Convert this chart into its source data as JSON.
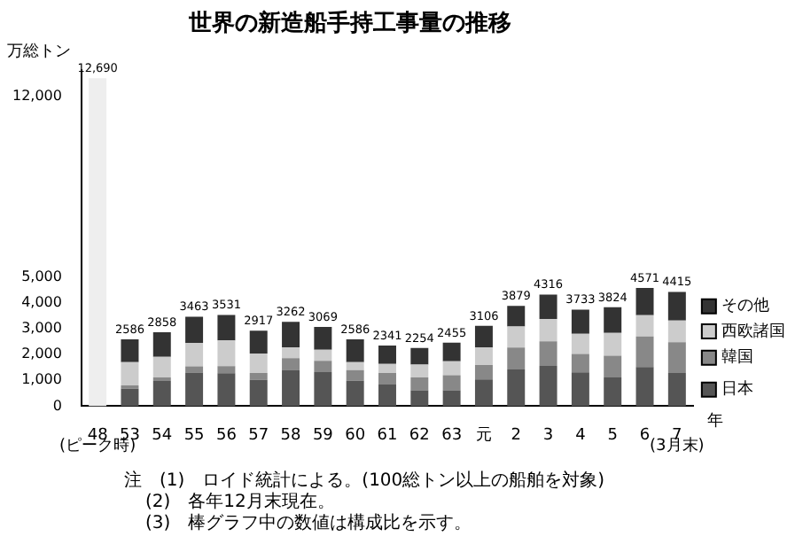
{
  "chart_data": {
    "type": "bar",
    "stacked": true,
    "title": "世界の新造船手持工事量の推移",
    "ylabel": "万総トン",
    "xlabel": "年",
    "categories": [
      "48",
      "53",
      "54",
      "55",
      "56",
      "57",
      "58",
      "59",
      "60",
      "61",
      "62",
      "63",
      "元",
      "2",
      "3",
      "4",
      "5",
      "6",
      "7"
    ],
    "series": [
      {
        "color": "#eeeeee",
        "values": [
          12690,
          null,
          null,
          null,
          null,
          null,
          null,
          null,
          null,
          null,
          null,
          null,
          null,
          null,
          null,
          null,
          null,
          null,
          null
        ]
      },
      {
        "name": "日本",
        "color": "#555555",
        "values": [
          null,
          670,
          970,
          1300,
          1270,
          1020,
          1400,
          1320,
          980,
          840,
          610,
          610,
          1030,
          1420,
          1560,
          1310,
          1110,
          1510,
          1280
        ]
      },
      {
        "name": "韓国",
        "color": "#888888",
        "values": [
          null,
          130,
          140,
          240,
          280,
          260,
          460,
          430,
          410,
          440,
          500,
          590,
          560,
          850,
          950,
          710,
          840,
          1190,
          1190
        ]
      },
      {
        "name": "西欧諸国",
        "color": "#cccccc",
        "values": [
          null,
          900,
          800,
          900,
          990,
          760,
          420,
          430,
          310,
          350,
          500,
          540,
          680,
          810,
          860,
          780,
          880,
          820,
          840
        ]
      },
      {
        "name": "その他",
        "color": "#333333",
        "values": [
          null,
          886,
          948,
          1023,
          991,
          877,
          982,
          889,
          886,
          711,
          644,
          715,
          836,
          799,
          946,
          933,
          994,
          1051,
          1105
        ]
      }
    ],
    "totals": [
      "12,690",
      "2586",
      "2858",
      "3463",
      "3531",
      "2917",
      "3262",
      "3069",
      "2586",
      "2341",
      "2254",
      "2455",
      "3106",
      "3879",
      "4316",
      "3733",
      "3824",
      "4571",
      "4415"
    ],
    "ylim": [
      0,
      13000
    ],
    "yticks": [
      0,
      {
        "value": 1000,
        "label": "1,000"
      },
      {
        "value": 2000,
        "label": "2,000"
      },
      {
        "value": 3000,
        "label": "3,000"
      },
      {
        "value": 4000,
        "label": "4,000"
      },
      {
        "value": 5000,
        "label": "5,000"
      },
      {
        "value": 12000,
        "label": "12,000"
      }
    ],
    "grid": false,
    "legend": "right",
    "annotations": [
      "(ピーク時)",
      "(3月末)",
      "注　(1)　ロイド統計による。(100総トン以上の船舶を対象)",
      "(2)　各年12月末現在。",
      "(3)　棒グラフ中の数値は構成比を示す。"
    ]
  }
}
